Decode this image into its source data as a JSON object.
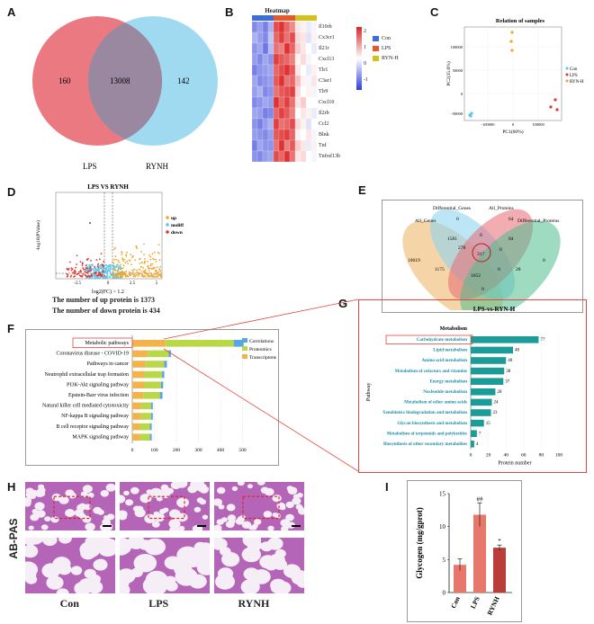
{
  "panels": {
    "A": "A",
    "B": "B",
    "C": "C",
    "D": "D",
    "E": "E",
    "F": "F",
    "G": "G",
    "H": "H",
    "I": "I"
  },
  "venn_a": {
    "left_only": "160",
    "overlap": "13008",
    "right_only": "142",
    "left_label": "LPS",
    "right_label": "RYNH",
    "left_color": "#e8616c",
    "right_color": "#8fd3ee"
  },
  "heatmap": {
    "title": "Heatmap",
    "genes": [
      "Il10rb",
      "Cx3cr1",
      "Il21r",
      "Cxcl13",
      "Tlr1",
      "C3ar1",
      "Tlr9",
      "Cxcl10",
      "Il2rb",
      "Ccl2",
      "Blnk",
      "Tnf",
      "Tnfrsf13b"
    ],
    "scale_ticks": [
      "2",
      "1",
      "0",
      "-1"
    ],
    "legend": [
      {
        "label": "Con",
        "color": "#3a6fd8"
      },
      {
        "label": "LPS",
        "color": "#e8562a"
      },
      {
        "label": "RYN-H",
        "color": "#d4c21c"
      }
    ],
    "matrix": [
      [
        -1.2,
        -1.0,
        -1.3,
        -0.8,
        1.4,
        1.6,
        1.2,
        0.9,
        0.2,
        0.1,
        -0.2,
        -0.1
      ],
      [
        -0.8,
        -1.0,
        -1.2,
        -0.6,
        1.2,
        1.5,
        1.1,
        1.4,
        0.3,
        0.2,
        -0.3,
        0.1
      ],
      [
        -1.1,
        -0.9,
        -1.4,
        -0.7,
        1.1,
        1.0,
        1.6,
        1.2,
        0.4,
        0.2,
        0.0,
        -0.2
      ],
      [
        -1.0,
        -1.2,
        -0.9,
        -1.1,
        1.5,
        1.3,
        1.2,
        1.0,
        0.1,
        0.3,
        -0.1,
        0.0
      ],
      [
        -1.3,
        -1.1,
        -1.0,
        -0.9,
        1.2,
        1.4,
        1.6,
        1.3,
        0.2,
        0.0,
        -0.2,
        0.1
      ],
      [
        -0.9,
        -1.2,
        -1.1,
        -1.0,
        1.3,
        1.6,
        1.1,
        1.2,
        0.5,
        0.1,
        -0.1,
        0.2
      ],
      [
        -1.0,
        -0.8,
        -1.2,
        -1.1,
        1.1,
        1.3,
        1.4,
        1.5,
        0.3,
        0.0,
        0.1,
        -0.1
      ],
      [
        -1.2,
        -1.1,
        -0.9,
        -1.0,
        1.6,
        1.2,
        1.5,
        1.1,
        0.2,
        0.4,
        0.0,
        0.0
      ],
      [
        -0.9,
        -1.0,
        -1.3,
        -1.2,
        1.2,
        1.5,
        1.3,
        1.0,
        0.0,
        0.2,
        0.1,
        -0.2
      ],
      [
        -1.1,
        -1.3,
        -1.0,
        -0.8,
        1.5,
        1.1,
        1.2,
        1.4,
        0.3,
        0.1,
        -0.3,
        0.0
      ],
      [
        -1.0,
        -1.1,
        -1.2,
        -1.0,
        1.3,
        1.4,
        1.5,
        1.2,
        0.1,
        0.0,
        0.2,
        -0.1
      ],
      [
        -1.3,
        -0.9,
        -1.1,
        -1.1,
        1.1,
        1.6,
        1.0,
        1.3,
        0.4,
        0.2,
        -0.2,
        0.1
      ],
      [
        -1.1,
        -1.2,
        -1.0,
        -0.9,
        1.4,
        1.2,
        1.6,
        1.1,
        0.2,
        0.3,
        0.0,
        -0.1
      ]
    ]
  },
  "pca": {
    "title": "Relation of samples",
    "xlabel": "PC1(60%)",
    "ylabel": "PC2(35.6%)",
    "x_ticks": [
      "-100000",
      "0",
      "100000"
    ],
    "y_ticks": [
      "100000",
      "50000",
      "0",
      "-50000"
    ],
    "legend": [
      {
        "label": "Con",
        "color": "#5bc6e8"
      },
      {
        "label": "LPS",
        "color": "#e2342c"
      },
      {
        "label": "RYN-H",
        "color": "#f0a62a"
      }
    ]
  },
  "volcano": {
    "title": "LPS VS RYNH",
    "ylabel": "-log10(PValue)",
    "xlabel": "log2(FC) > 1.2",
    "x_ticks": [
      "-2.5",
      "0",
      "2.5",
      "5"
    ],
    "legend": [
      {
        "label": "up",
        "color": "#f0a62a"
      },
      {
        "label": "nodiff",
        "color": "#5bc6e8"
      },
      {
        "label": "down",
        "color": "#e2342c"
      }
    ],
    "caption_up": "The number of up protein is 1373",
    "caption_down": "The number of down protein is 434"
  },
  "venn_e": {
    "labels": [
      "All_Genes",
      "Differential_Genes",
      "All_Proteins",
      "Differential_Proteins"
    ],
    "values": {
      "all_genes_only": "10619",
      "diff_genes_only": "0",
      "all_proteins_only": "64",
      "diff_proteins_only": "0",
      "v1581": "1581",
      "v278": "278",
      "v317": "317",
      "v84": "84",
      "v1175": "1175",
      "v1652": "1652",
      "v28": "28",
      "z1": "0",
      "z2": "0",
      "z3": "0",
      "z4": "0"
    }
  },
  "kegg_f": {
    "pathways": [
      "Metabolic pathways",
      "Coronavirus disease - COVID-19",
      "Pathways in cancer",
      "Neutrophil extracellular trap formation",
      "PI3K-Akt signaling pathway",
      "Epstein-Barr virus infection",
      "Natural killer cell mediated cytotoxicity",
      "NF-kappa B signaling pathway",
      "B cell receptor signaling pathway",
      "MAPK signaling pathway"
    ],
    "series": [
      {
        "name": "Transcriptome",
        "color": "#f2b34a",
        "values": [
          150,
          70,
          60,
          55,
          55,
          50,
          40,
          40,
          35,
          35
        ]
      },
      {
        "name": "Proteomics",
        "color": "#b8d845",
        "values": [
          310,
          95,
          85,
          80,
          75,
          75,
          45,
          45,
          45,
          45
        ]
      },
      {
        "name": "Correlations",
        "color": "#5aa6e0",
        "values": [
          45,
          10,
          12,
          10,
          10,
          12,
          8,
          8,
          8,
          8
        ]
      }
    ],
    "x_ticks": [
      "0",
      "100",
      "200",
      "300",
      "400",
      "500"
    ],
    "legend_order": [
      "Correlations",
      "Proteomics",
      "Transcriptome"
    ]
  },
  "kegg_g": {
    "title": "LPS-vs-RYN-H",
    "category": "Metabolism",
    "ylabel": "Pathway",
    "xlabel": "Protein number",
    "x_ticks": [
      "0",
      "20",
      "40",
      "60",
      "80",
      "100"
    ],
    "pathways": [
      "Carbohydrate metabolism",
      "Lipid metabolism",
      "Amino acid metabolism",
      "Metabolism of cofactors and vitamins",
      "Energy metabolism",
      "Nucleotide metabolism",
      "Metabolism of other amino acids",
      "Xenobiotics biodegradation and metabolism",
      "Glycan biosynthesis and metabolism",
      "Metabolism of terpenoids and polyketides",
      "Biosynthesis of other secondary metabolites"
    ],
    "values": [
      77,
      48,
      40,
      38,
      37,
      28,
      24,
      23,
      15,
      7,
      4
    ],
    "bar_color": "#1c9c98"
  },
  "histology": {
    "stain_label": "AB-PAS",
    "groups": [
      "Con",
      "LPS",
      "RYNH"
    ]
  },
  "chart_data": {
    "type": "bar",
    "title": "",
    "ylabel": "Glycogen (mg/gprot)",
    "categories": [
      "Con",
      "LPS",
      "RYNH"
    ],
    "values": [
      4.2,
      11.8,
      6.8
    ],
    "errors": [
      0.9,
      1.8,
      0.4
    ],
    "ylim": [
      0,
      15
    ],
    "y_ticks": [
      "0",
      "5",
      "10",
      "15"
    ],
    "annotations": [
      "",
      "##",
      "*"
    ],
    "colors": [
      "#e8776b",
      "#e8776b",
      "#bb3d3a"
    ]
  }
}
